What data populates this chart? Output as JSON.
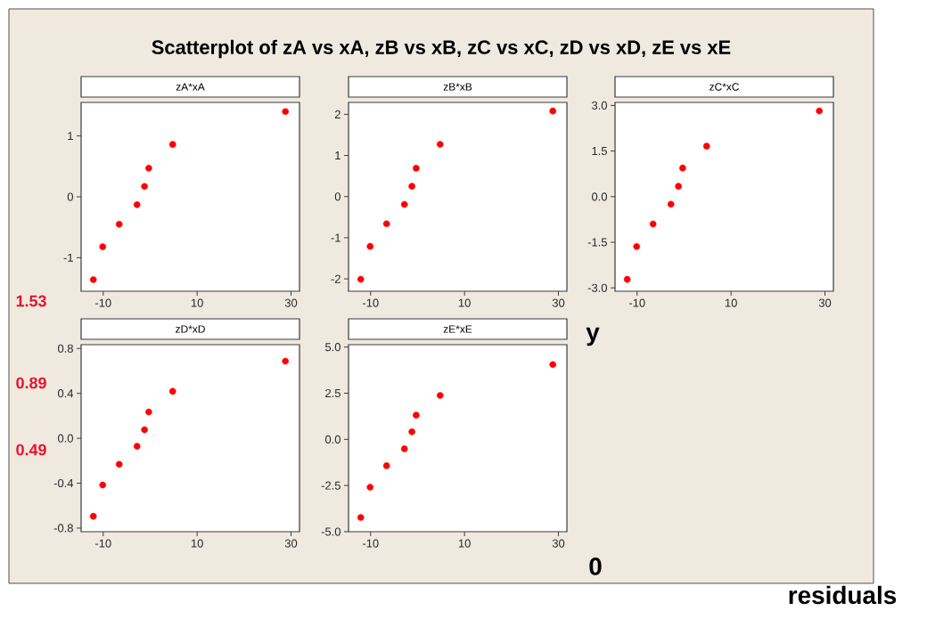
{
  "chart_data": [
    {
      "type": "scatter",
      "title": "zA*xA",
      "annotations": [
        "Scatterplot of zA vs xA, zB vs xB, zC vs xC, zD vs xD, zE vs xE",
        "1.53",
        "0.89",
        "0.49",
        "y",
        "0",
        "residuals"
      ],
      "marker": "circle",
      "grid": false,
      "xlim": [
        -14.7,
        31.8
      ],
      "xticks": [
        -10,
        10,
        30
      ],
      "ylim": [
        -1.55,
        1.55
      ],
      "yticks": [
        -1,
        0,
        1
      ],
      "series": [
        {
          "color": "#ff0000",
          "x": [
            -12.1,
            -10.1,
            -6.6,
            -2.8,
            -1.2,
            -0.3,
            4.8,
            28.8
          ],
          "values": [
            -1.36,
            -0.82,
            -0.45,
            -0.13,
            0.17,
            0.47,
            0.86,
            1.4
          ]
        }
      ]
    },
    {
      "type": "scatter",
      "title": "zB*xB",
      "marker": "circle",
      "grid": false,
      "xlim": [
        -14.7,
        31.8
      ],
      "xticks": [
        -10,
        10,
        30
      ],
      "ylim": [
        -2.3,
        2.29
      ],
      "yticks": [
        -2,
        -1,
        0,
        1,
        2
      ],
      "series": [
        {
          "color": "#ff0000",
          "x": [
            -12.1,
            -10.1,
            -6.6,
            -2.8,
            -1.2,
            -0.3,
            4.8,
            28.8
          ],
          "values": [
            -2.01,
            -1.21,
            -0.66,
            -0.19,
            0.25,
            0.69,
            1.27,
            2.08
          ]
        }
      ]
    },
    {
      "type": "scatter",
      "title": "zC*xC",
      "marker": "circle",
      "grid": false,
      "xlim": [
        -14.7,
        31.8
      ],
      "xticks": [
        -10,
        10,
        30
      ],
      "ylim": [
        -3.11,
        3.1
      ],
      "yticks": [
        {
          "value": -3,
          "label": "-3.0"
        },
        {
          "value": -1.5,
          "label": "-1.5"
        },
        {
          "value": 0,
          "label": "0.0"
        },
        {
          "value": 1.5,
          "label": "1.5"
        },
        {
          "value": 3,
          "label": "3.0"
        }
      ],
      "series": [
        {
          "color": "#ff0000",
          "x": [
            -12.1,
            -10.1,
            -6.6,
            -2.8,
            -1.2,
            -0.3,
            4.8,
            28.8
          ],
          "values": [
            -2.72,
            -1.64,
            -0.9,
            -0.25,
            0.34,
            0.94,
            1.66,
            2.82
          ]
        }
      ]
    },
    {
      "type": "scatter",
      "title": "zD*xD",
      "marker": "circle",
      "grid": false,
      "xlim": [
        -14.7,
        31.8
      ],
      "xticks": [
        -10,
        10,
        30
      ],
      "ylim": [
        -0.832,
        0.834
      ],
      "yticks": [
        -0.8,
        -0.4,
        {
          "value": 0,
          "label": "0.0"
        },
        0.4,
        0.8
      ],
      "series": [
        {
          "color": "#ff0000",
          "x": [
            -12.1,
            -10.1,
            -6.6,
            -2.8,
            -1.2,
            -0.3,
            4.8,
            28.8
          ],
          "values": [
            -0.695,
            -0.416,
            -0.232,
            -0.071,
            0.076,
            0.234,
            0.418,
            0.687
          ]
        }
      ]
    },
    {
      "type": "scatter",
      "title": "zE*xE",
      "marker": "circle",
      "grid": false,
      "xlim": [
        -14.7,
        31.8
      ],
      "xticks": [
        -10,
        10,
        30
      ],
      "ylim": [
        -5.0,
        5.13
      ],
      "yticks": [
        {
          "value": -5,
          "label": "-5.0"
        },
        {
          "value": -2.5,
          "label": "-2.5"
        },
        {
          "value": 0,
          "label": "0.0"
        },
        {
          "value": 2.5,
          "label": "2.5"
        },
        {
          "value": 5,
          "label": "5.0"
        }
      ],
      "series": [
        {
          "color": "#ff0000",
          "x": [
            -12.1,
            -10.1,
            -6.6,
            -2.8,
            -1.2,
            -0.3,
            4.8,
            28.8
          ],
          "values": [
            -4.23,
            -2.59,
            -1.43,
            -0.51,
            0.41,
            1.31,
            2.38,
            4.05
          ]
        }
      ]
    }
  ]
}
